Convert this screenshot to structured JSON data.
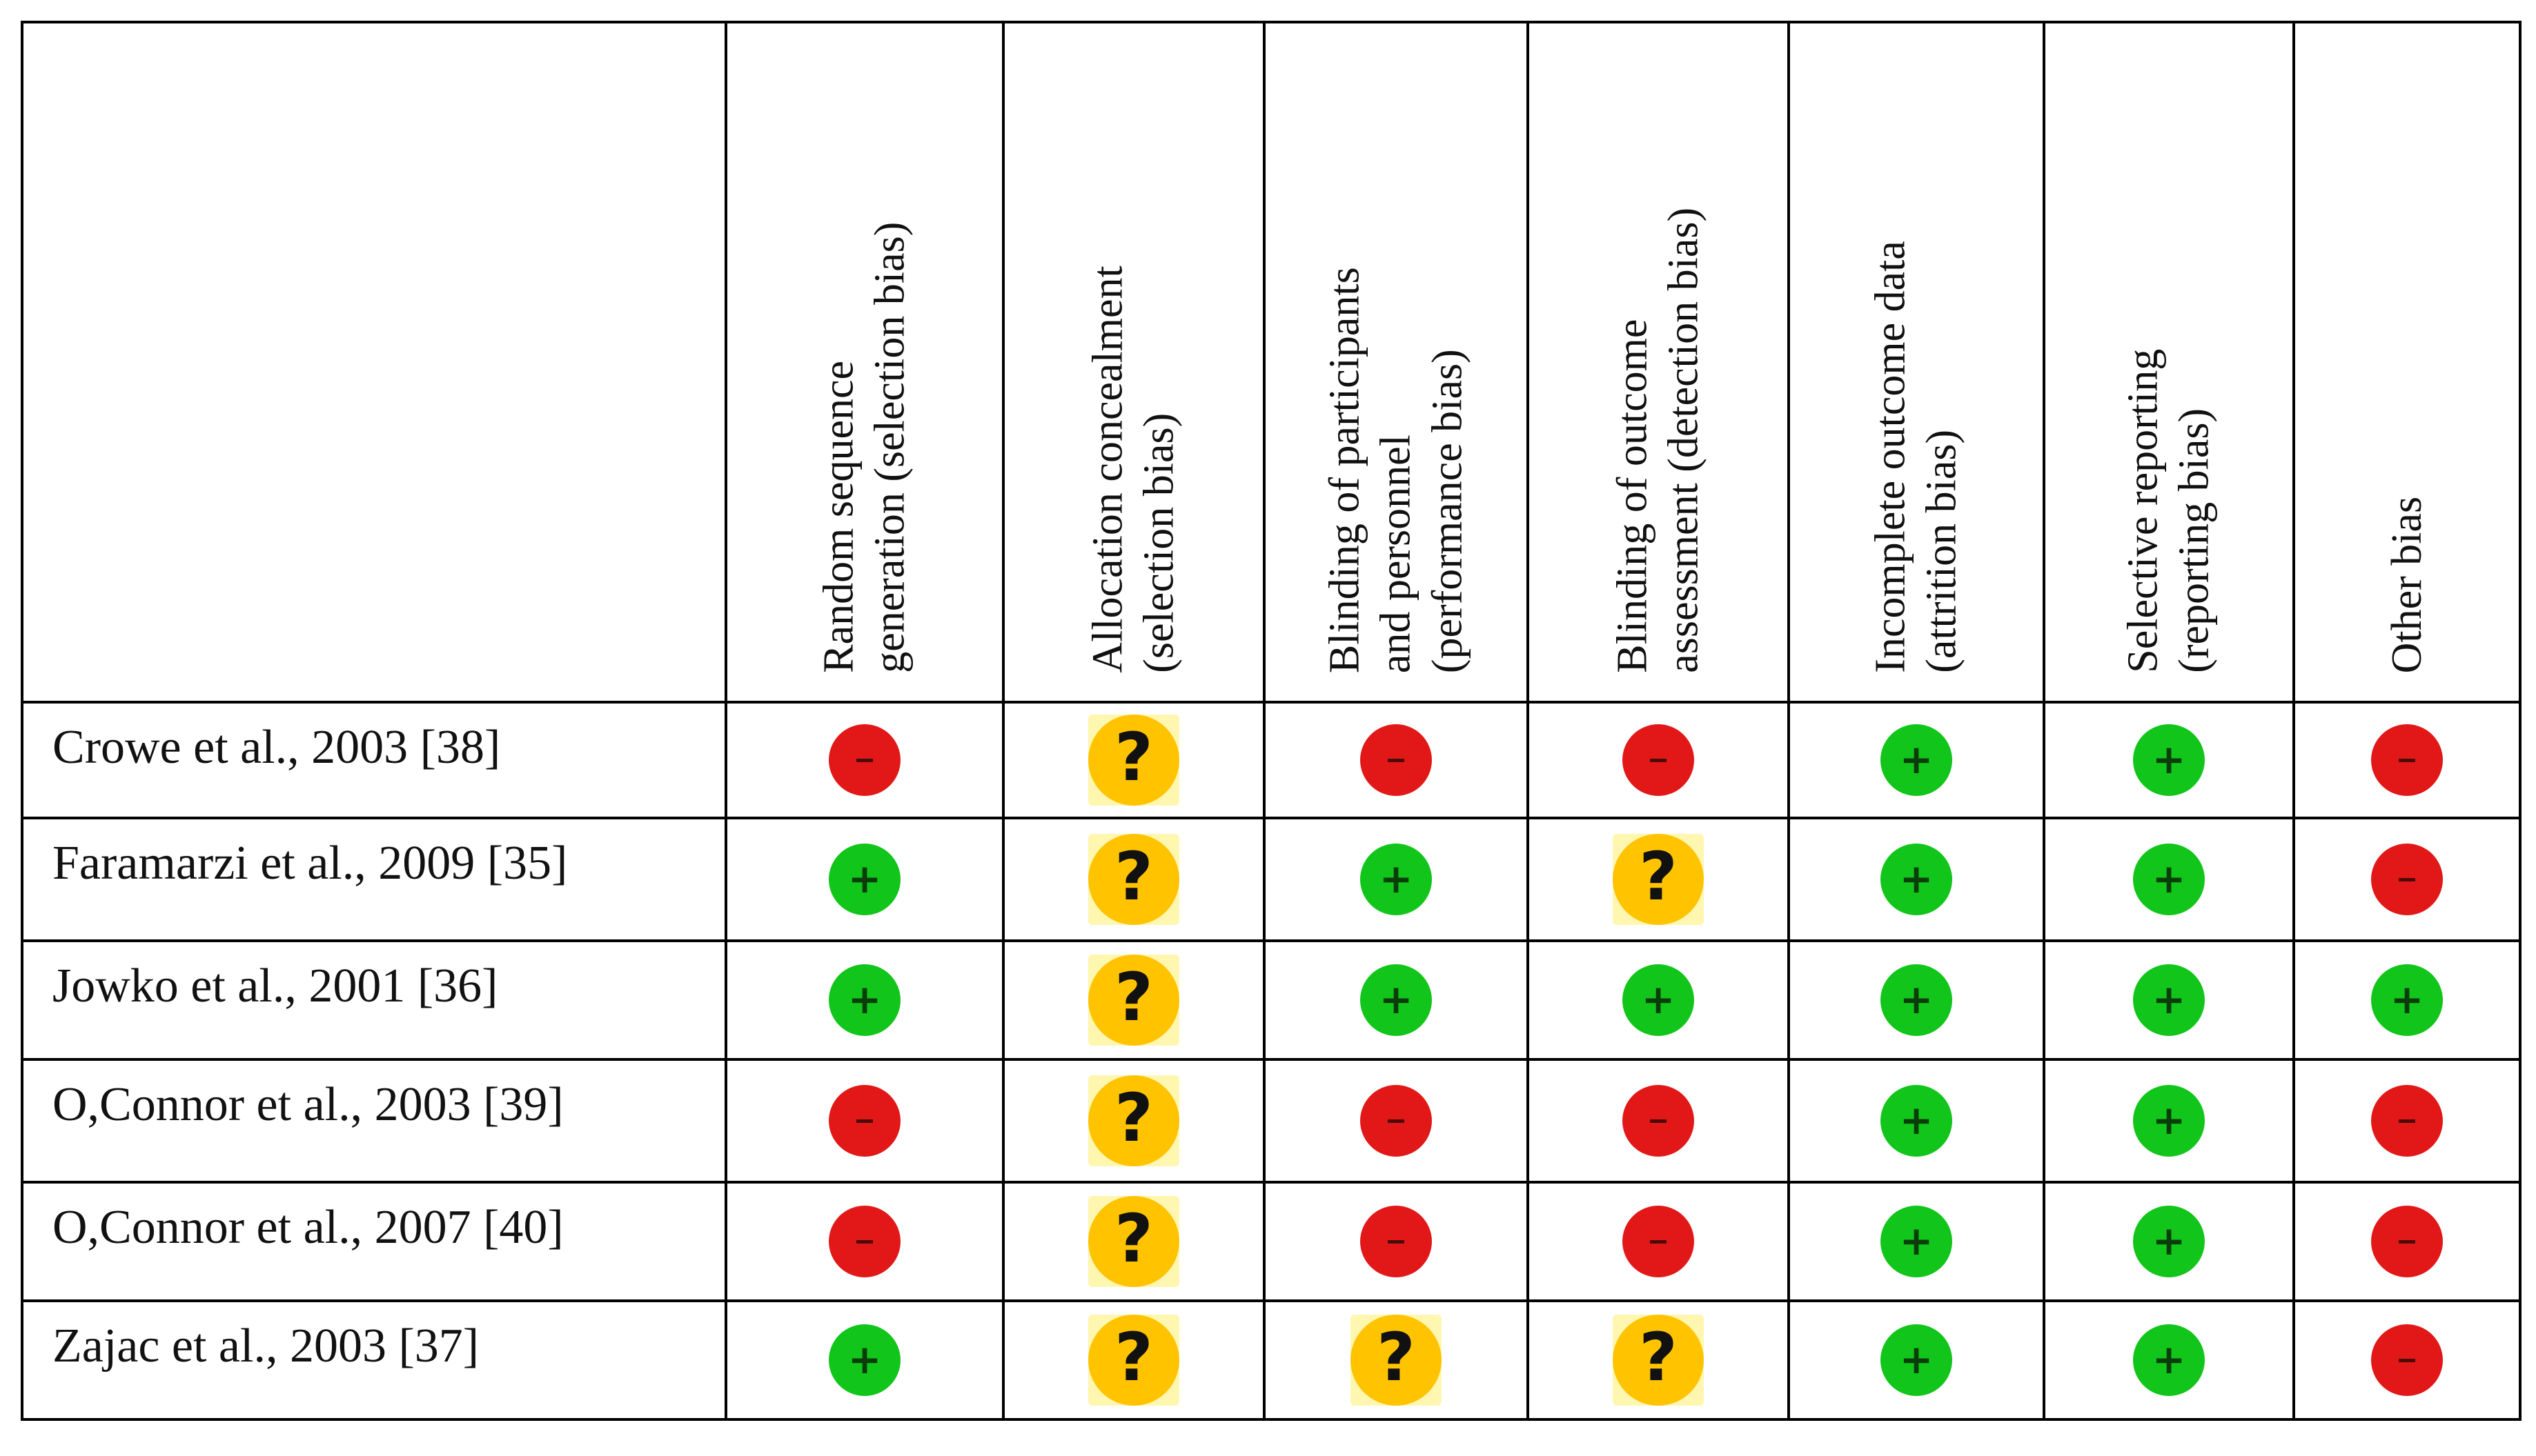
{
  "columns": [
    {
      "line1": "Random sequence",
      "line2": "generation (selection bias)",
      "line3": ""
    },
    {
      "line1": "Allocation concealment",
      "line2": "(selection bias)",
      "line3": ""
    },
    {
      "line1": "Blinding of participants",
      "line2": "and personnel",
      "line3": "(performance bias)"
    },
    {
      "line1": "Blinding of outcome",
      "line2": "assessment (detection bias)",
      "line3": ""
    },
    {
      "line1": "Incomplete outcome data",
      "line2": "(attrition bias)",
      "line3": ""
    },
    {
      "line1": "Selective reporting",
      "line2": "(reporting bias)",
      "line3": ""
    },
    {
      "line1": "Other bias",
      "line2": "",
      "line3": ""
    }
  ],
  "rows": [
    {
      "study": "Crowe et al., 2003 [38]",
      "ratings": [
        "high",
        "unclear",
        "high",
        "high",
        "low",
        "low",
        "high"
      ]
    },
    {
      "study": "Faramarzi et al., 2009 [35]",
      "ratings": [
        "low",
        "unclear",
        "low",
        "unclear",
        "low",
        "low",
        "high"
      ]
    },
    {
      "study": "Jowko et al., 2001 [36]",
      "ratings": [
        "low",
        "unclear",
        "low",
        "low",
        "low",
        "low",
        "low"
      ]
    },
    {
      "study": "O,Connor et al., 2003 [39]",
      "ratings": [
        "high",
        "unclear",
        "high",
        "high",
        "low",
        "low",
        "high"
      ]
    },
    {
      "study": "O,Connor et al., 2007 [40]",
      "ratings": [
        "high",
        "unclear",
        "high",
        "high",
        "low",
        "low",
        "high"
      ]
    },
    {
      "study": "Zajac et al., 2003 [37]",
      "ratings": [
        "low",
        "unclear",
        "unclear",
        "unclear",
        "low",
        "low",
        "high"
      ]
    }
  ],
  "rating_icons": {
    "low": "plus-circle-icon",
    "high": "minus-circle-icon",
    "unclear": "question-circle-icon"
  },
  "colors": {
    "low": "#11c51a",
    "high": "#e21818",
    "unclear": "#ffc300"
  }
}
